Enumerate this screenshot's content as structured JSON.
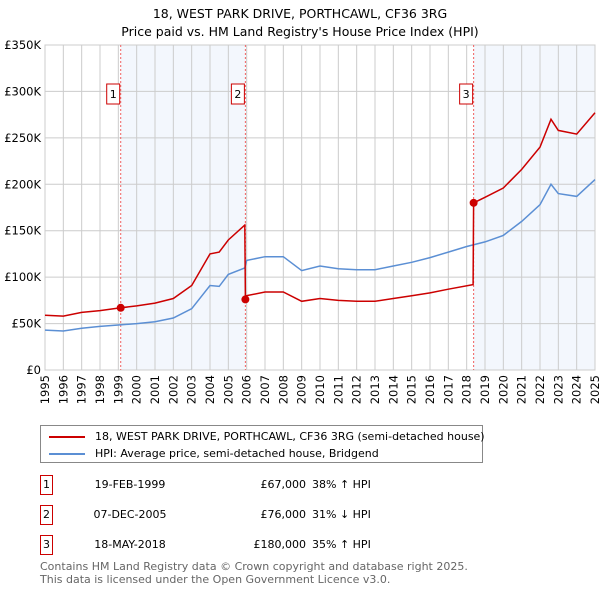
{
  "chart_data": {
    "type": "line",
    "title": "18, WEST PARK DRIVE, PORTHCAWL, CF36 3RG",
    "subtitle": "Price paid vs. HM Land Registry's House Price Index (HPI)",
    "xlim": [
      1995,
      2025
    ],
    "ylim": [
      0,
      350000
    ],
    "yticks": [
      0,
      50000,
      100000,
      150000,
      200000,
      250000,
      300000,
      350000
    ],
    "ytick_labels": [
      "£0",
      "£50K",
      "£100K",
      "£150K",
      "£200K",
      "£250K",
      "£300K",
      "£350K"
    ],
    "xticks": [
      "1995",
      "1996",
      "1997",
      "1998",
      "1999",
      "2000",
      "2001",
      "2002",
      "2003",
      "2004",
      "2005",
      "2006",
      "2007",
      "2008",
      "2009",
      "2010",
      "2011",
      "2012",
      "2013",
      "2014",
      "2015",
      "2016",
      "2017",
      "2018",
      "2019",
      "2020",
      "2021",
      "2022",
      "2023",
      "2024",
      "2025"
    ],
    "grid": true,
    "series": [
      {
        "name": "18, WEST PARK DRIVE, PORTHCAWL, CF36 3RG (semi-detached house)",
        "color": "#cc0000",
        "x": [
          1995,
          1996,
          1997,
          1998,
          1999.13,
          2000,
          2001,
          2002,
          2003,
          2004,
          2004.5,
          2005,
          2005.9,
          2005.93,
          2006,
          2007,
          2008,
          2009,
          2010,
          2011,
          2012,
          2013,
          2014,
          2015,
          2016,
          2017,
          2018.35,
          2018.38,
          2019,
          2020,
          2021,
          2022,
          2022.6,
          2023,
          2024,
          2025
        ],
        "y": [
          59000,
          58000,
          62000,
          64000,
          67000,
          69000,
          72000,
          77000,
          91000,
          125000,
          127000,
          140000,
          156000,
          76000,
          80000,
          84000,
          84000,
          74000,
          77000,
          75000,
          74000,
          74000,
          77000,
          80000,
          83000,
          87000,
          92000,
          180000,
          186000,
          196000,
          216000,
          240000,
          270000,
          258000,
          254000,
          277000
        ]
      },
      {
        "name": "HPI: Average price, semi-detached house, Bridgend",
        "color": "#5b8fd4",
        "x": [
          1995,
          1996,
          1997,
          1998,
          1999,
          2000,
          2001,
          2002,
          2003,
          2004,
          2004.5,
          2005,
          2005.9,
          2006,
          2007,
          2008,
          2009,
          2010,
          2011,
          2012,
          2013,
          2014,
          2015,
          2016,
          2017,
          2018,
          2019,
          2020,
          2021,
          2022,
          2022.6,
          2023,
          2024,
          2025
        ],
        "y": [
          43000,
          42000,
          45000,
          47000,
          48500,
          50000,
          52000,
          56000,
          66000,
          91000,
          90000,
          103000,
          110000,
          118000,
          122000,
          122000,
          107000,
          112000,
          109000,
          108000,
          108000,
          112000,
          116000,
          121000,
          127000,
          133000,
          138000,
          145000,
          160000,
          178000,
          200000,
          190000,
          187000,
          205000
        ]
      }
    ],
    "sales": [
      {
        "label": "1",
        "x": 1999.13,
        "y": 67000,
        "date": "19-FEB-1999",
        "price": "£67,000",
        "hpi": "38% ↑ HPI"
      },
      {
        "label": "2",
        "x": 2005.93,
        "y": 76000,
        "date": "07-DEC-2005",
        "price": "£76,000",
        "hpi": "31% ↓ HPI"
      },
      {
        "label": "3",
        "x": 2018.38,
        "y": 180000,
        "date": "18-MAY-2018",
        "price": "£180,000",
        "hpi": "35% ↑ HPI"
      }
    ],
    "legend": [
      "18, WEST PARK DRIVE, PORTHCAWL, CF36 3RG (semi-detached house)",
      "HPI: Average price, semi-detached house, Bridgend"
    ]
  },
  "footer": [
    "Contains HM Land Registry data © Crown copyright and database right 2025.",
    "This data is licensed under the Open Government Licence v3.0."
  ]
}
